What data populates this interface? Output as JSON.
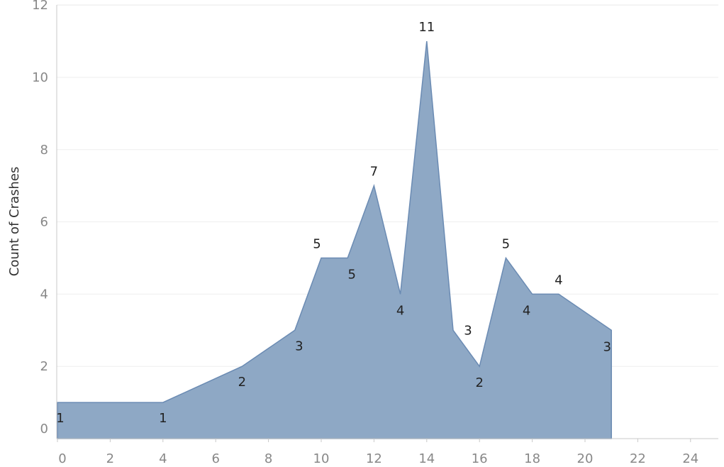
{
  "chart_data": {
    "type": "area",
    "title": "",
    "xlabel": "",
    "ylabel": "Count of Crashes",
    "x": [
      0,
      4,
      7,
      9,
      10,
      11,
      12,
      13,
      14,
      15,
      16,
      17,
      18,
      19,
      21
    ],
    "values": [
      1,
      1,
      2,
      3,
      5,
      5,
      7,
      4,
      11,
      3,
      2,
      5,
      4,
      4,
      3
    ],
    "data_labels": [
      "1",
      "1",
      "2",
      "3",
      "5",
      "5",
      "7",
      "4",
      "11",
      "3",
      "2",
      "5",
      "4",
      "4",
      "3"
    ],
    "xlim": [
      0,
      25
    ],
    "ylim": [
      0,
      12
    ],
    "x_ticks": [
      "0",
      "2",
      "4",
      "6",
      "8",
      "10",
      "12",
      "14",
      "16",
      "18",
      "20",
      "22",
      "24"
    ],
    "y_ticks": [
      "0",
      "2",
      "4",
      "6",
      "8",
      "10",
      "12"
    ],
    "grid": true,
    "colors": {
      "fill": "#8ea8c5",
      "line": "#6b8bb3",
      "grid": "#eeeeee",
      "axis": "#c8c8c8"
    }
  }
}
